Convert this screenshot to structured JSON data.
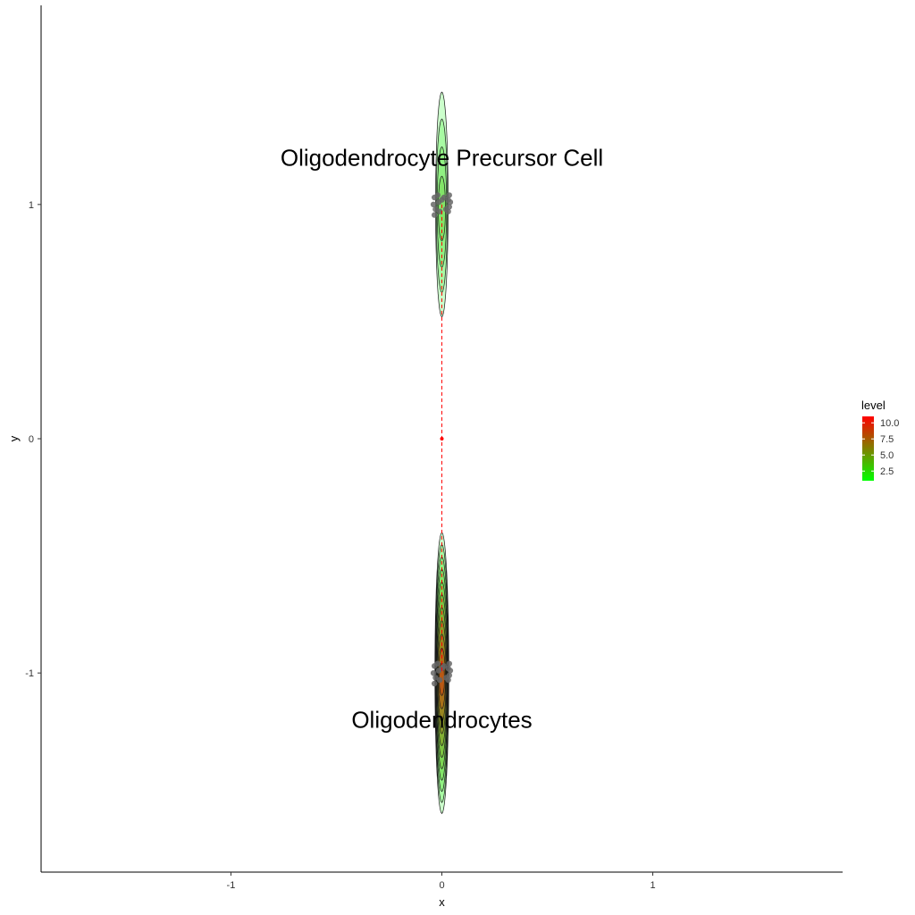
{
  "chart_data": {
    "type": "contour",
    "xlabel": "x",
    "ylabel": "y",
    "xlim": [
      -1.9,
      1.9
    ],
    "ylim": [
      -1.85,
      1.85
    ],
    "x_ticks": [
      -1,
      0,
      1
    ],
    "y_ticks": [
      -1,
      0,
      1
    ],
    "x_tick_labels": [
      "-1",
      "0",
      "1"
    ],
    "y_tick_labels": [
      "-1",
      "0",
      "1"
    ],
    "grid": false,
    "legend": {
      "title": "level",
      "placement": "right",
      "breaks": [
        10.0,
        7.5,
        5.0,
        2.5
      ],
      "labels": [
        "10.0",
        "7.5",
        "5.0",
        "2.5"
      ],
      "range": [
        1.0,
        11.0
      ],
      "colors": {
        "low": "#00ff00",
        "high": "#ff0000"
      }
    },
    "clusters": [
      {
        "label": "Oligodendrocyte Precursor Cell",
        "center": [
          0,
          1
        ],
        "label_pos": [
          0,
          1.2
        ],
        "max_level": 4,
        "half_height": 0.48,
        "half_width": 0.03
      },
      {
        "label": "Oligodendrocytes",
        "center": [
          0,
          -1
        ],
        "label_pos": [
          0,
          -1.2
        ],
        "max_level": 11,
        "half_height": 0.6,
        "half_width": 0.033
      }
    ],
    "trajectory": {
      "points": [
        [
          0,
          1
        ],
        [
          0,
          0
        ],
        [
          0,
          -1
        ]
      ],
      "color": "#ff0000",
      "dashed": true
    },
    "root_point": [
      0,
      0
    ]
  }
}
